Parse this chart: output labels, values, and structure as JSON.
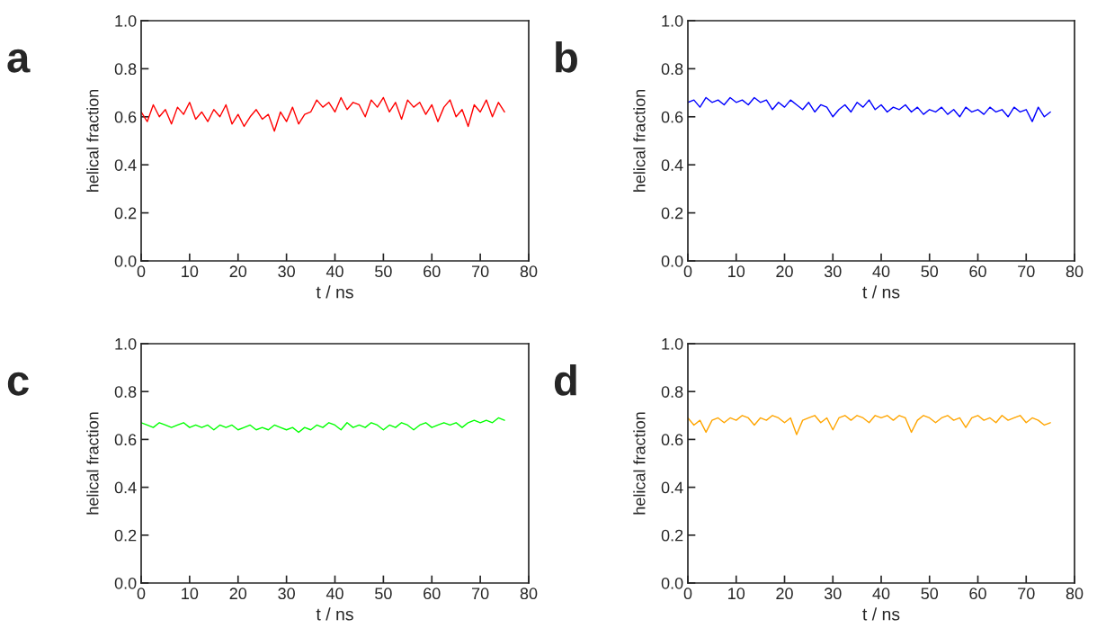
{
  "chart_data": [
    {
      "type": "line",
      "title": "a",
      "xlabel": "t / ns",
      "ylabel": "helical fraction",
      "xlim": [
        0,
        80
      ],
      "ylim": [
        0,
        1
      ],
      "xticks": [
        0,
        10,
        20,
        30,
        40,
        50,
        60,
        70,
        80
      ],
      "yticks": [
        {
          "value": 0,
          "label": "0.0"
        },
        {
          "value": 0.2,
          "label": "0.2"
        },
        {
          "value": 0.4,
          "label": "0.4"
        },
        {
          "value": 0.6,
          "label": "0.6"
        },
        {
          "value": 0.8,
          "label": "0.8"
        },
        {
          "value": 1,
          "label": "1.0"
        }
      ],
      "grid": false,
      "x": [
        0,
        1.25,
        2.5,
        3.75,
        5,
        6.25,
        7.5,
        8.75,
        10,
        11.25,
        12.5,
        13.75,
        15,
        16.25,
        17.5,
        18.75,
        20,
        21.25,
        22.5,
        23.75,
        25,
        26.25,
        27.5,
        28.75,
        30,
        31.25,
        32.5,
        33.75,
        35,
        36.25,
        37.5,
        38.75,
        40,
        41.25,
        42.5,
        43.75,
        45,
        46.25,
        47.5,
        48.75,
        50,
        51.25,
        52.5,
        53.75,
        55,
        56.25,
        57.5,
        58.75,
        60,
        61.25,
        62.5,
        63.75,
        65,
        66.25,
        67.5,
        68.75,
        70,
        71.25,
        72.5,
        73.75,
        75
      ],
      "series": [
        {
          "color": "#ff0000",
          "values": [
            0.62,
            0.58,
            0.65,
            0.6,
            0.63,
            0.57,
            0.64,
            0.61,
            0.66,
            0.59,
            0.62,
            0.58,
            0.63,
            0.6,
            0.65,
            0.57,
            0.61,
            0.56,
            0.6,
            0.63,
            0.59,
            0.61,
            0.54,
            0.62,
            0.58,
            0.64,
            0.57,
            0.61,
            0.62,
            0.67,
            0.64,
            0.66,
            0.62,
            0.68,
            0.63,
            0.66,
            0.65,
            0.6,
            0.67,
            0.64,
            0.68,
            0.62,
            0.66,
            0.59,
            0.67,
            0.64,
            0.66,
            0.61,
            0.65,
            0.58,
            0.64,
            0.67,
            0.6,
            0.63,
            0.56,
            0.65,
            0.62,
            0.67,
            0.6,
            0.66,
            0.62
          ]
        }
      ]
    },
    {
      "type": "line",
      "title": "b",
      "xlabel": "t / ns",
      "ylabel": "helical fraction",
      "xlim": [
        0,
        80
      ],
      "ylim": [
        0,
        1
      ],
      "xticks": [
        0,
        10,
        20,
        30,
        40,
        50,
        60,
        70,
        80
      ],
      "yticks": [
        {
          "value": 0,
          "label": "0.0"
        },
        {
          "value": 0.2,
          "label": "0.2"
        },
        {
          "value": 0.4,
          "label": "0.4"
        },
        {
          "value": 0.6,
          "label": "0.6"
        },
        {
          "value": 0.8,
          "label": "0.8"
        },
        {
          "value": 1,
          "label": "1.0"
        }
      ],
      "grid": false,
      "x": [
        0,
        1.25,
        2.5,
        3.75,
        5,
        6.25,
        7.5,
        8.75,
        10,
        11.25,
        12.5,
        13.75,
        15,
        16.25,
        17.5,
        18.75,
        20,
        21.25,
        22.5,
        23.75,
        25,
        26.25,
        27.5,
        28.75,
        30,
        31.25,
        32.5,
        33.75,
        35,
        36.25,
        37.5,
        38.75,
        40,
        41.25,
        42.5,
        43.75,
        45,
        46.25,
        47.5,
        48.75,
        50,
        51.25,
        52.5,
        53.75,
        55,
        56.25,
        57.5,
        58.75,
        60,
        61.25,
        62.5,
        63.75,
        65,
        66.25,
        67.5,
        68.75,
        70,
        71.25,
        72.5,
        73.75,
        75
      ],
      "series": [
        {
          "color": "#0000ff",
          "values": [
            0.66,
            0.67,
            0.64,
            0.68,
            0.66,
            0.67,
            0.65,
            0.68,
            0.66,
            0.67,
            0.65,
            0.68,
            0.66,
            0.67,
            0.63,
            0.66,
            0.64,
            0.67,
            0.65,
            0.63,
            0.66,
            0.62,
            0.65,
            0.64,
            0.6,
            0.63,
            0.65,
            0.62,
            0.66,
            0.64,
            0.67,
            0.63,
            0.65,
            0.62,
            0.64,
            0.63,
            0.65,
            0.62,
            0.64,
            0.61,
            0.63,
            0.62,
            0.64,
            0.61,
            0.63,
            0.6,
            0.64,
            0.62,
            0.63,
            0.61,
            0.64,
            0.62,
            0.63,
            0.6,
            0.64,
            0.62,
            0.63,
            0.58,
            0.64,
            0.6,
            0.62
          ]
        }
      ]
    },
    {
      "type": "line",
      "title": "c",
      "xlabel": "t / ns",
      "ylabel": "helical fraction",
      "xlim": [
        0,
        80
      ],
      "ylim": [
        0,
        1
      ],
      "xticks": [
        0,
        10,
        20,
        30,
        40,
        50,
        60,
        70,
        80
      ],
      "yticks": [
        {
          "value": 0,
          "label": "0.0"
        },
        {
          "value": 0.2,
          "label": "0.2"
        },
        {
          "value": 0.4,
          "label": "0.4"
        },
        {
          "value": 0.6,
          "label": "0.6"
        },
        {
          "value": 0.8,
          "label": "0.8"
        },
        {
          "value": 1,
          "label": "1.0"
        }
      ],
      "grid": false,
      "x": [
        0,
        1.25,
        2.5,
        3.75,
        5,
        6.25,
        7.5,
        8.75,
        10,
        11.25,
        12.5,
        13.75,
        15,
        16.25,
        17.5,
        18.75,
        20,
        21.25,
        22.5,
        23.75,
        25,
        26.25,
        27.5,
        28.75,
        30,
        31.25,
        32.5,
        33.75,
        35,
        36.25,
        37.5,
        38.75,
        40,
        41.25,
        42.5,
        43.75,
        45,
        46.25,
        47.5,
        48.75,
        50,
        51.25,
        52.5,
        53.75,
        55,
        56.25,
        57.5,
        58.75,
        60,
        61.25,
        62.5,
        63.75,
        65,
        66.25,
        67.5,
        68.75,
        70,
        71.25,
        72.5,
        73.75,
        75
      ],
      "series": [
        {
          "color": "#00ff00",
          "values": [
            0.67,
            0.66,
            0.65,
            0.67,
            0.66,
            0.65,
            0.66,
            0.67,
            0.65,
            0.66,
            0.65,
            0.66,
            0.64,
            0.66,
            0.65,
            0.66,
            0.64,
            0.65,
            0.66,
            0.64,
            0.65,
            0.64,
            0.66,
            0.65,
            0.64,
            0.65,
            0.63,
            0.65,
            0.64,
            0.66,
            0.65,
            0.67,
            0.66,
            0.64,
            0.67,
            0.65,
            0.66,
            0.65,
            0.67,
            0.66,
            0.64,
            0.66,
            0.65,
            0.67,
            0.66,
            0.64,
            0.66,
            0.67,
            0.65,
            0.66,
            0.67,
            0.66,
            0.67,
            0.65,
            0.67,
            0.68,
            0.67,
            0.68,
            0.67,
            0.69,
            0.68
          ]
        }
      ]
    },
    {
      "type": "line",
      "title": "d",
      "xlabel": "t / ns",
      "ylabel": "helical fraction",
      "xlim": [
        0,
        80
      ],
      "ylim": [
        0,
        1
      ],
      "xticks": [
        0,
        10,
        20,
        30,
        40,
        50,
        60,
        70,
        80
      ],
      "yticks": [
        {
          "value": 0,
          "label": "0.0"
        },
        {
          "value": 0.2,
          "label": "0.2"
        },
        {
          "value": 0.4,
          "label": "0.4"
        },
        {
          "value": 0.6,
          "label": "0.6"
        },
        {
          "value": 0.8,
          "label": "0.8"
        },
        {
          "value": 1,
          "label": "1.0"
        }
      ],
      "grid": false,
      "x": [
        0,
        1.25,
        2.5,
        3.75,
        5,
        6.25,
        7.5,
        8.75,
        10,
        11.25,
        12.5,
        13.75,
        15,
        16.25,
        17.5,
        18.75,
        20,
        21.25,
        22.5,
        23.75,
        25,
        26.25,
        27.5,
        28.75,
        30,
        31.25,
        32.5,
        33.75,
        35,
        36.25,
        37.5,
        38.75,
        40,
        41.25,
        42.5,
        43.75,
        45,
        46.25,
        47.5,
        48.75,
        50,
        51.25,
        52.5,
        53.75,
        55,
        56.25,
        57.5,
        58.75,
        60,
        61.25,
        62.5,
        63.75,
        65,
        66.25,
        67.5,
        68.75,
        70,
        71.25,
        72.5,
        73.75,
        75
      ],
      "series": [
        {
          "color": "#ffa500",
          "values": [
            0.69,
            0.66,
            0.68,
            0.63,
            0.68,
            0.69,
            0.67,
            0.69,
            0.68,
            0.7,
            0.69,
            0.66,
            0.69,
            0.68,
            0.7,
            0.69,
            0.67,
            0.69,
            0.62,
            0.68,
            0.69,
            0.7,
            0.67,
            0.69,
            0.64,
            0.69,
            0.7,
            0.68,
            0.7,
            0.69,
            0.67,
            0.7,
            0.69,
            0.7,
            0.68,
            0.7,
            0.69,
            0.63,
            0.68,
            0.7,
            0.69,
            0.67,
            0.69,
            0.7,
            0.68,
            0.69,
            0.65,
            0.69,
            0.7,
            0.68,
            0.69,
            0.67,
            0.7,
            0.68,
            0.69,
            0.7,
            0.67,
            0.69,
            0.68,
            0.66,
            0.67
          ]
        }
      ]
    }
  ]
}
